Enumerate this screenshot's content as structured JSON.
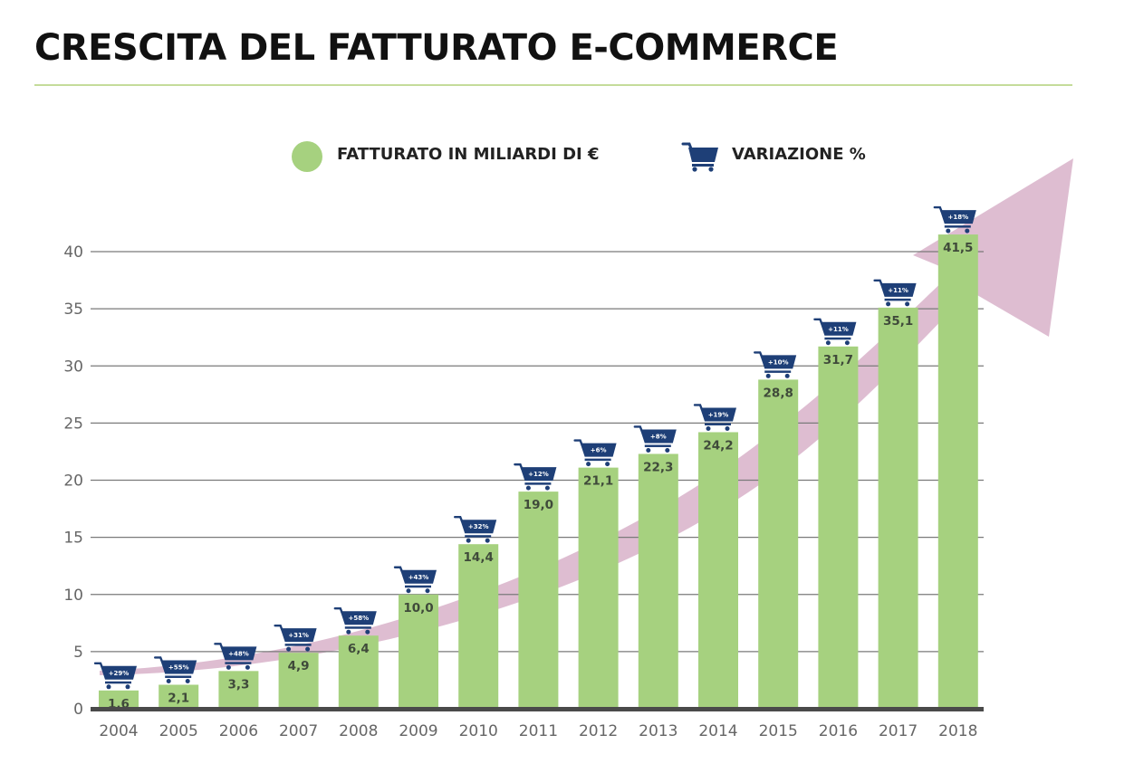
{
  "title": "CRESCITA DEL FATTURATO E-COMMERCE",
  "legend": {
    "revenue_label": "FATTURATO IN MILIARDI DI €",
    "change_label": "VARIAZIONE %"
  },
  "colors": {
    "bar": "#a6d17f",
    "cart": "#1e3f77",
    "arrow": "#dcb9cf",
    "grid": "#7a7a7a",
    "baseline": "#4a4a4a",
    "rule": "#c5dc9a"
  },
  "icons": {
    "legend_marker": "green-circle",
    "change_marker": "shopping-cart-icon"
  },
  "chart_data": {
    "type": "bar",
    "title": "CRESCITA DEL FATTURATO E-COMMERCE",
    "xlabel": "",
    "ylabel": "",
    "categories": [
      "2004",
      "2005",
      "2006",
      "2007",
      "2008",
      "2009",
      "2010",
      "2011",
      "2012",
      "2013",
      "2014",
      "2015",
      "2016",
      "2017",
      "2018"
    ],
    "series": [
      {
        "name": "FATTURATO IN MILIARDI DI €",
        "values": [
          1.6,
          2.1,
          3.3,
          4.9,
          6.4,
          10.0,
          14.4,
          19.0,
          21.1,
          22.3,
          24.2,
          28.8,
          31.7,
          35.1,
          41.5
        ]
      }
    ],
    "value_labels": [
      "1,6",
      "2,1",
      "3,3",
      "4,9",
      "6,4",
      "10,0",
      "14,4",
      "19,0",
      "21,1",
      "22,3",
      "24,2",
      "28,8",
      "31,7",
      "35,1",
      "41,5"
    ],
    "variations": [
      "+29%",
      "+55%",
      "+48%",
      "+31%",
      "+58%",
      "+43%",
      "+32%",
      "+12%",
      "+6%",
      "+8%",
      "+19%",
      "+10%",
      "+11%",
      "+11%",
      "+18%"
    ],
    "ylim": [
      0,
      40
    ],
    "yticks": [
      0,
      5,
      10,
      15,
      20,
      25,
      30,
      35,
      40
    ],
    "grid": true,
    "legend_position": "top-center",
    "trend_arrow": true
  }
}
